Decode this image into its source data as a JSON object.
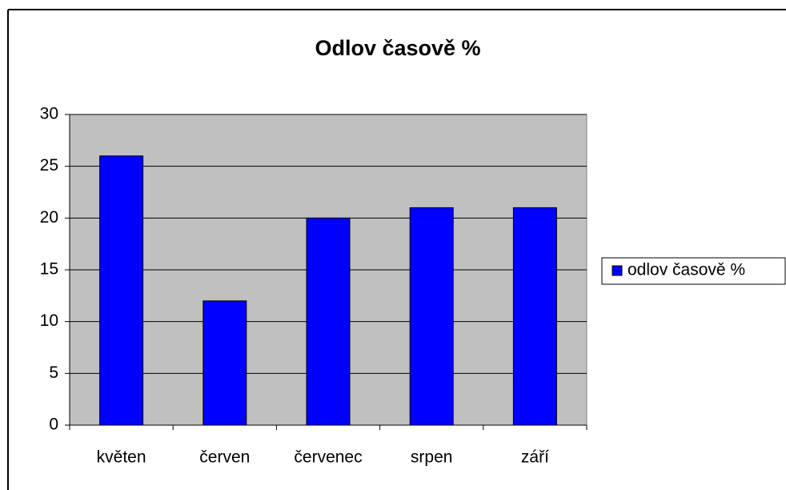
{
  "chart_data": {
    "type": "bar",
    "title": "Odlov časově %",
    "categories": [
      "květen",
      "červen",
      "červenec",
      "srpen",
      "září"
    ],
    "series": [
      {
        "name": "odlov časově %",
        "color": "#0000ff",
        "values": [
          26,
          12,
          20,
          21,
          21
        ]
      }
    ],
    "ylim": [
      0,
      30
    ],
    "yticks": [
      0,
      5,
      10,
      15,
      20,
      25,
      30
    ],
    "grid": true,
    "legend": "right"
  }
}
